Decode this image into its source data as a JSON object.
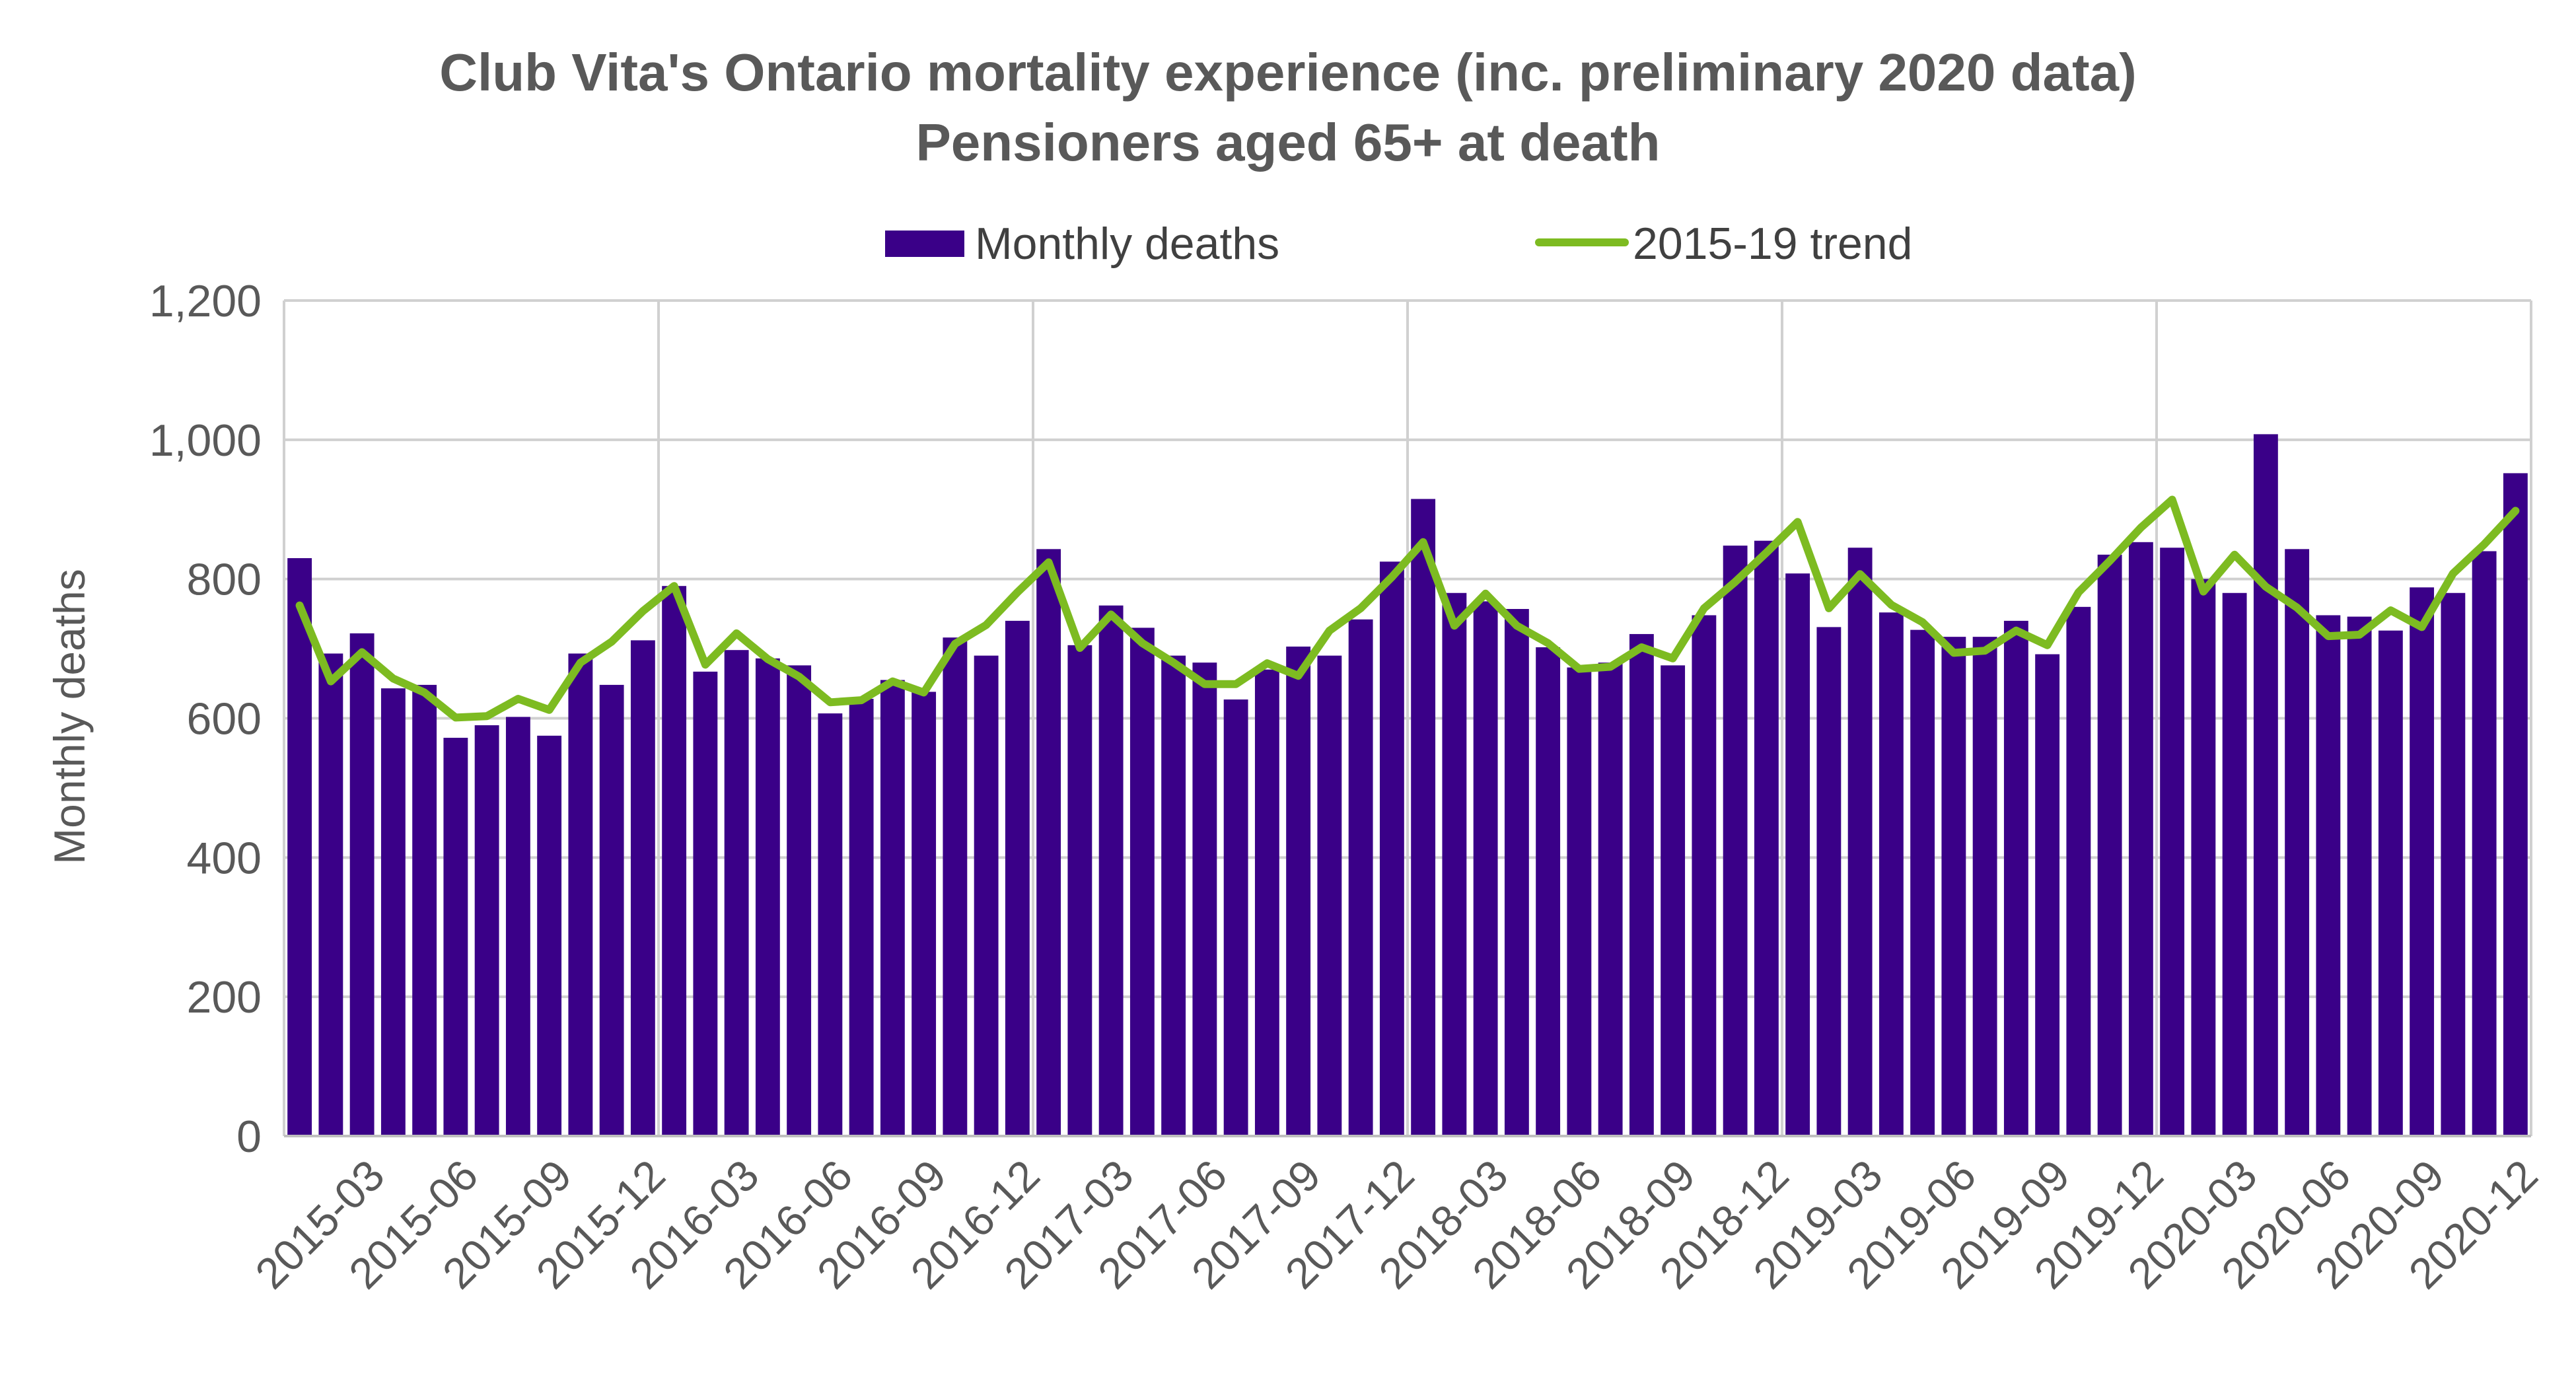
{
  "chart_data": {
    "type": "bar",
    "title": "Club Vita's Ontario mortality experience (inc. preliminary 2020 data)",
    "subtitle": "Pensioners aged 65+ at death",
    "ylabel": "Monthly deaths",
    "xlabel": "",
    "ylim": [
      0,
      1200
    ],
    "yticks": [
      "0",
      "200",
      "400",
      "600",
      "800",
      "1,000",
      "1,200"
    ],
    "ytick_values": [
      0,
      200,
      400,
      600,
      800,
      1000,
      1200
    ],
    "grid": true,
    "legend_position": "top-center",
    "categories": [
      "2015-01",
      "2015-02",
      "2015-03",
      "2015-04",
      "2015-05",
      "2015-06",
      "2015-07",
      "2015-08",
      "2015-09",
      "2015-10",
      "2015-11",
      "2015-12",
      "2016-01",
      "2016-02",
      "2016-03",
      "2016-04",
      "2016-05",
      "2016-06",
      "2016-07",
      "2016-08",
      "2016-09",
      "2016-10",
      "2016-11",
      "2016-12",
      "2017-01",
      "2017-02",
      "2017-03",
      "2017-04",
      "2017-05",
      "2017-06",
      "2017-07",
      "2017-08",
      "2017-09",
      "2017-10",
      "2017-11",
      "2017-12",
      "2018-01",
      "2018-02",
      "2018-03",
      "2018-04",
      "2018-05",
      "2018-06",
      "2018-07",
      "2018-08",
      "2018-09",
      "2018-10",
      "2018-11",
      "2018-12",
      "2019-01",
      "2019-02",
      "2019-03",
      "2019-04",
      "2019-05",
      "2019-06",
      "2019-07",
      "2019-08",
      "2019-09",
      "2019-10",
      "2019-11",
      "2019-12",
      "2020-01",
      "2020-02",
      "2020-03",
      "2020-04",
      "2020-05",
      "2020-06",
      "2020-07",
      "2020-08",
      "2020-09",
      "2020-10",
      "2020-11",
      "2020-12"
    ],
    "x_tick_labels": [
      "2015-03",
      "2015-06",
      "2015-09",
      "2015-12",
      "2016-03",
      "2016-06",
      "2016-09",
      "2016-12",
      "2017-03",
      "2017-06",
      "2017-09",
      "2017-12",
      "2018-03",
      "2018-06",
      "2018-09",
      "2018-12",
      "2019-03",
      "2019-06",
      "2019-09",
      "2019-12",
      "2020-03",
      "2020-06",
      "2020-09",
      "2020-12"
    ],
    "series": [
      {
        "name": "Monthly deaths",
        "type": "bar",
        "color": "#3a0088",
        "values": [
          830,
          693,
          722,
          643,
          648,
          572,
          590,
          602,
          575,
          693,
          648,
          712,
          790,
          667,
          698,
          686,
          676,
          607,
          628,
          655,
          638,
          716,
          690,
          740,
          843,
          705,
          762,
          730,
          690,
          680,
          627,
          670,
          703,
          690,
          742,
          825,
          915,
          780,
          768,
          757,
          702,
          673,
          680,
          721,
          676,
          748,
          848,
          855,
          808,
          731,
          845,
          752,
          727,
          717,
          717,
          740,
          692,
          760,
          835,
          853,
          845,
          800,
          780,
          1008,
          843,
          748,
          746,
          726,
          788,
          780,
          840,
          952
        ]
      },
      {
        "name": "2015-19 trend",
        "type": "line",
        "color": "#7dbb21",
        "values": [
          762,
          653,
          695,
          657,
          637,
          601,
          603,
          628,
          612,
          680,
          710,
          754,
          790,
          677,
          722,
          685,
          660,
          623,
          626,
          653,
          637,
          707,
          734,
          781,
          824,
          701,
          749,
          708,
          680,
          649,
          649,
          679,
          661,
          726,
          758,
          803,
          853,
          733,
          779,
          733,
          708,
          671,
          674,
          702,
          686,
          758,
          796,
          838,
          882,
          758,
          807,
          763,
          738,
          694,
          697,
          726,
          705,
          781,
          826,
          874,
          914,
          782,
          835,
          789,
          759,
          718,
          720,
          755,
          731,
          808,
          850,
          898
        ]
      }
    ]
  }
}
